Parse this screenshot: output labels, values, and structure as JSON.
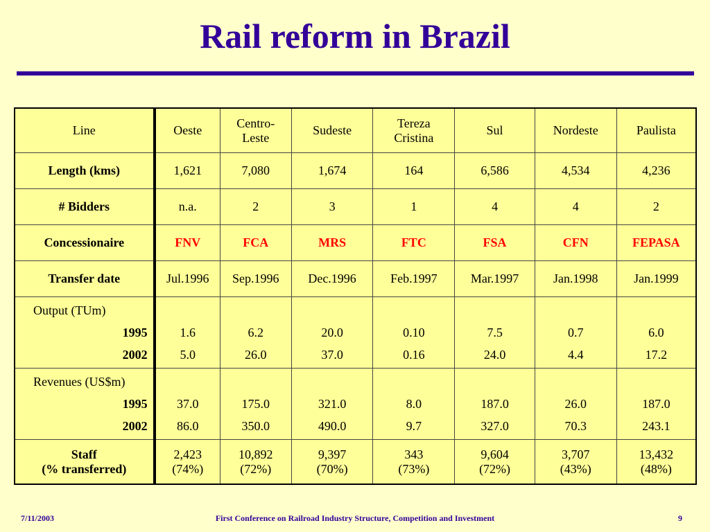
{
  "title": "Rail reform in Brazil",
  "table": {
    "corner": "Line",
    "columns": [
      {
        "line1": "Oeste",
        "line2": ""
      },
      {
        "line1": "Centro-",
        "line2": "Leste"
      },
      {
        "line1": "Sudeste",
        "line2": ""
      },
      {
        "line1": "Tereza",
        "line2": "Cristina"
      },
      {
        "line1": "Sul",
        "line2": ""
      },
      {
        "line1": "Nordeste",
        "line2": ""
      },
      {
        "line1": "Paulista",
        "line2": ""
      }
    ],
    "length": {
      "label": "Length (kms)",
      "values": [
        "1,621",
        "7,080",
        "1,674",
        "164",
        "6,586",
        "4,534",
        "4,236"
      ]
    },
    "bidders": {
      "label": "# Bidders",
      "values": [
        "n.a.",
        "2",
        "3",
        "1",
        "4",
        "4",
        "2"
      ]
    },
    "concessionaire": {
      "label": "Concessionaire",
      "values": [
        "FNV",
        "FCA",
        "MRS",
        "FTC",
        "FSA",
        "CFN",
        "FEPASA"
      ],
      "color": "#ff0000"
    },
    "transfer": {
      "label": "Transfer date",
      "values": [
        "Jul.1996",
        "Sep.1996",
        "Dec.1996",
        "Feb.1997",
        "Mar.1997",
        "Jan.1998",
        "Jan.1999"
      ]
    },
    "output": {
      "label": "Output (TUm)",
      "year1": "1995",
      "year2": "2002",
      "values1995": [
        "1.6",
        "6.2",
        "20.0",
        "0.10",
        "7.5",
        "0.7",
        "6.0"
      ],
      "values2002": [
        "5.0",
        "26.0",
        "37.0",
        "0.16",
        "24.0",
        "4.4",
        "17.2"
      ]
    },
    "revenues": {
      "label": "Revenues (US$m)",
      "year1": "1995",
      "year2": "2002",
      "values1995": [
        "37.0",
        "175.0",
        "321.0",
        "8.0",
        "187.0",
        "26.0",
        "187.0"
      ],
      "values2002": [
        "86.0",
        "350.0",
        "490.0",
        "9.7",
        "327.0",
        "70.3",
        "243.1"
      ]
    },
    "staff": {
      "label1": "Staff",
      "label2": "(% transferred)",
      "counts": [
        "2,423",
        "10,892",
        "9,397",
        "343",
        "9,604",
        "3,707",
        "13,432"
      ],
      "percents": [
        "(74%)",
        "(72%)",
        "(70%)",
        "(73%)",
        "(72%)",
        "(43%)",
        "(48%)"
      ]
    }
  },
  "footer": {
    "date": "7/11/2003",
    "conference": "First Conference on Railroad Industry Structure, Competition and Investment",
    "page": "9"
  },
  "colors": {
    "background": "#ffffcc",
    "table_fill": "#ffff99",
    "title": "#330099",
    "highlight": "#ff0000"
  }
}
